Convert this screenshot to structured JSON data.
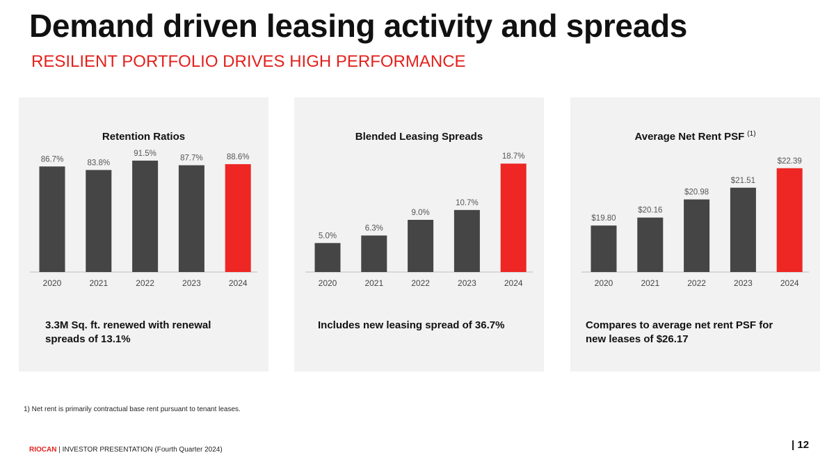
{
  "header": {
    "title": "Demand driven leasing activity and spreads",
    "subtitle": "RESILIENT PORTFOLIO DRIVES HIGH PERFORMANCE"
  },
  "colors": {
    "bar": "#454545",
    "highlight": "#ee2724",
    "accent": "#e2211c",
    "panel": "#f2f2f2"
  },
  "panels": [
    {
      "note": "3.3M Sq. ft. renewed with renewal spreads of 13.1%"
    },
    {
      "note": "Includes new leasing spread of 36.7%"
    },
    {
      "note": "Compares to average net rent PSF for new leases of $26.17"
    }
  ],
  "chart_data": [
    {
      "type": "bar",
      "title": "Retention Ratios",
      "title_sup": "",
      "categories": [
        "2020",
        "2021",
        "2022",
        "2023",
        "2024"
      ],
      "values": [
        86.7,
        83.8,
        91.5,
        87.7,
        88.6
      ],
      "value_labels": [
        "86.7%",
        "83.8%",
        "91.5%",
        "87.7%",
        "88.6%"
      ],
      "highlight_index": 4,
      "ylim": [
        0,
        100
      ],
      "grid": false
    },
    {
      "type": "bar",
      "title": "Blended Leasing Spreads",
      "title_sup": "",
      "categories": [
        "2020",
        "2021",
        "2022",
        "2023",
        "2024"
      ],
      "values": [
        5.0,
        6.3,
        9.0,
        10.7,
        18.7
      ],
      "value_labels": [
        "5.0%",
        "6.3%",
        "9.0%",
        "10.7%",
        "18.7%"
      ],
      "highlight_index": 4,
      "ylim": [
        0,
        21
      ],
      "grid": false
    },
    {
      "type": "bar",
      "title": "Average Net Rent PSF",
      "title_sup": "(1)",
      "categories": [
        "2020",
        "2021",
        "2022",
        "2023",
        "2024"
      ],
      "values": [
        19.8,
        20.16,
        20.98,
        21.51,
        22.39
      ],
      "value_labels": [
        "$19.80",
        "$20.16",
        "$20.98",
        "$21.51",
        "$22.39"
      ],
      "highlight_index": 4,
      "ylim": [
        17.7,
        23.2
      ],
      "grid": false
    }
  ],
  "footnote": "1) Net rent is primarily contractual base rent pursuant to tenant leases.",
  "footer": {
    "brand": "RIOCAN",
    "text": " | INVESTOR PRESENTATION (Fourth Quarter 2024)",
    "page": "| 12"
  }
}
